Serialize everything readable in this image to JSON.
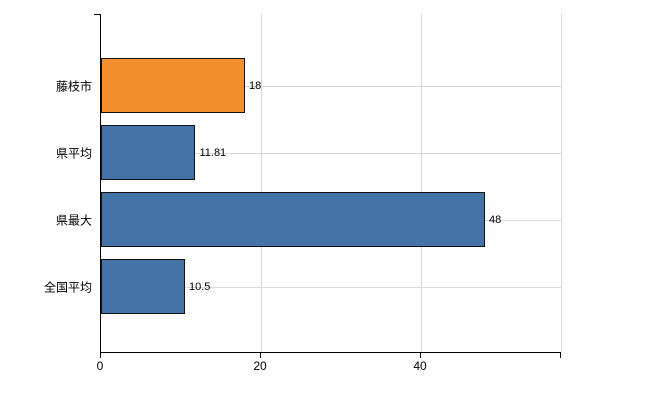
{
  "chart_data": {
    "type": "bar",
    "orientation": "horizontal",
    "title": "",
    "categories": [
      "藤枝市",
      "県平均",
      "県最大",
      "全国平均"
    ],
    "values": [
      18,
      11.81,
      48,
      10.5
    ],
    "value_labels": [
      "18",
      "11.81",
      "48",
      "10.5"
    ],
    "bar_colors": [
      "#f28e2c",
      "#4473a7",
      "#4473a7",
      "#4473a7"
    ],
    "xlim": [
      0,
      57.5
    ],
    "x_ticks": [
      0,
      20,
      40
    ],
    "x_tick_labels": [
      "0",
      "20",
      "40"
    ],
    "grid": true,
    "legend": "none",
    "background": "#ffffff",
    "grid_color": "#d9d9d9",
    "axis_color": "#000000"
  }
}
